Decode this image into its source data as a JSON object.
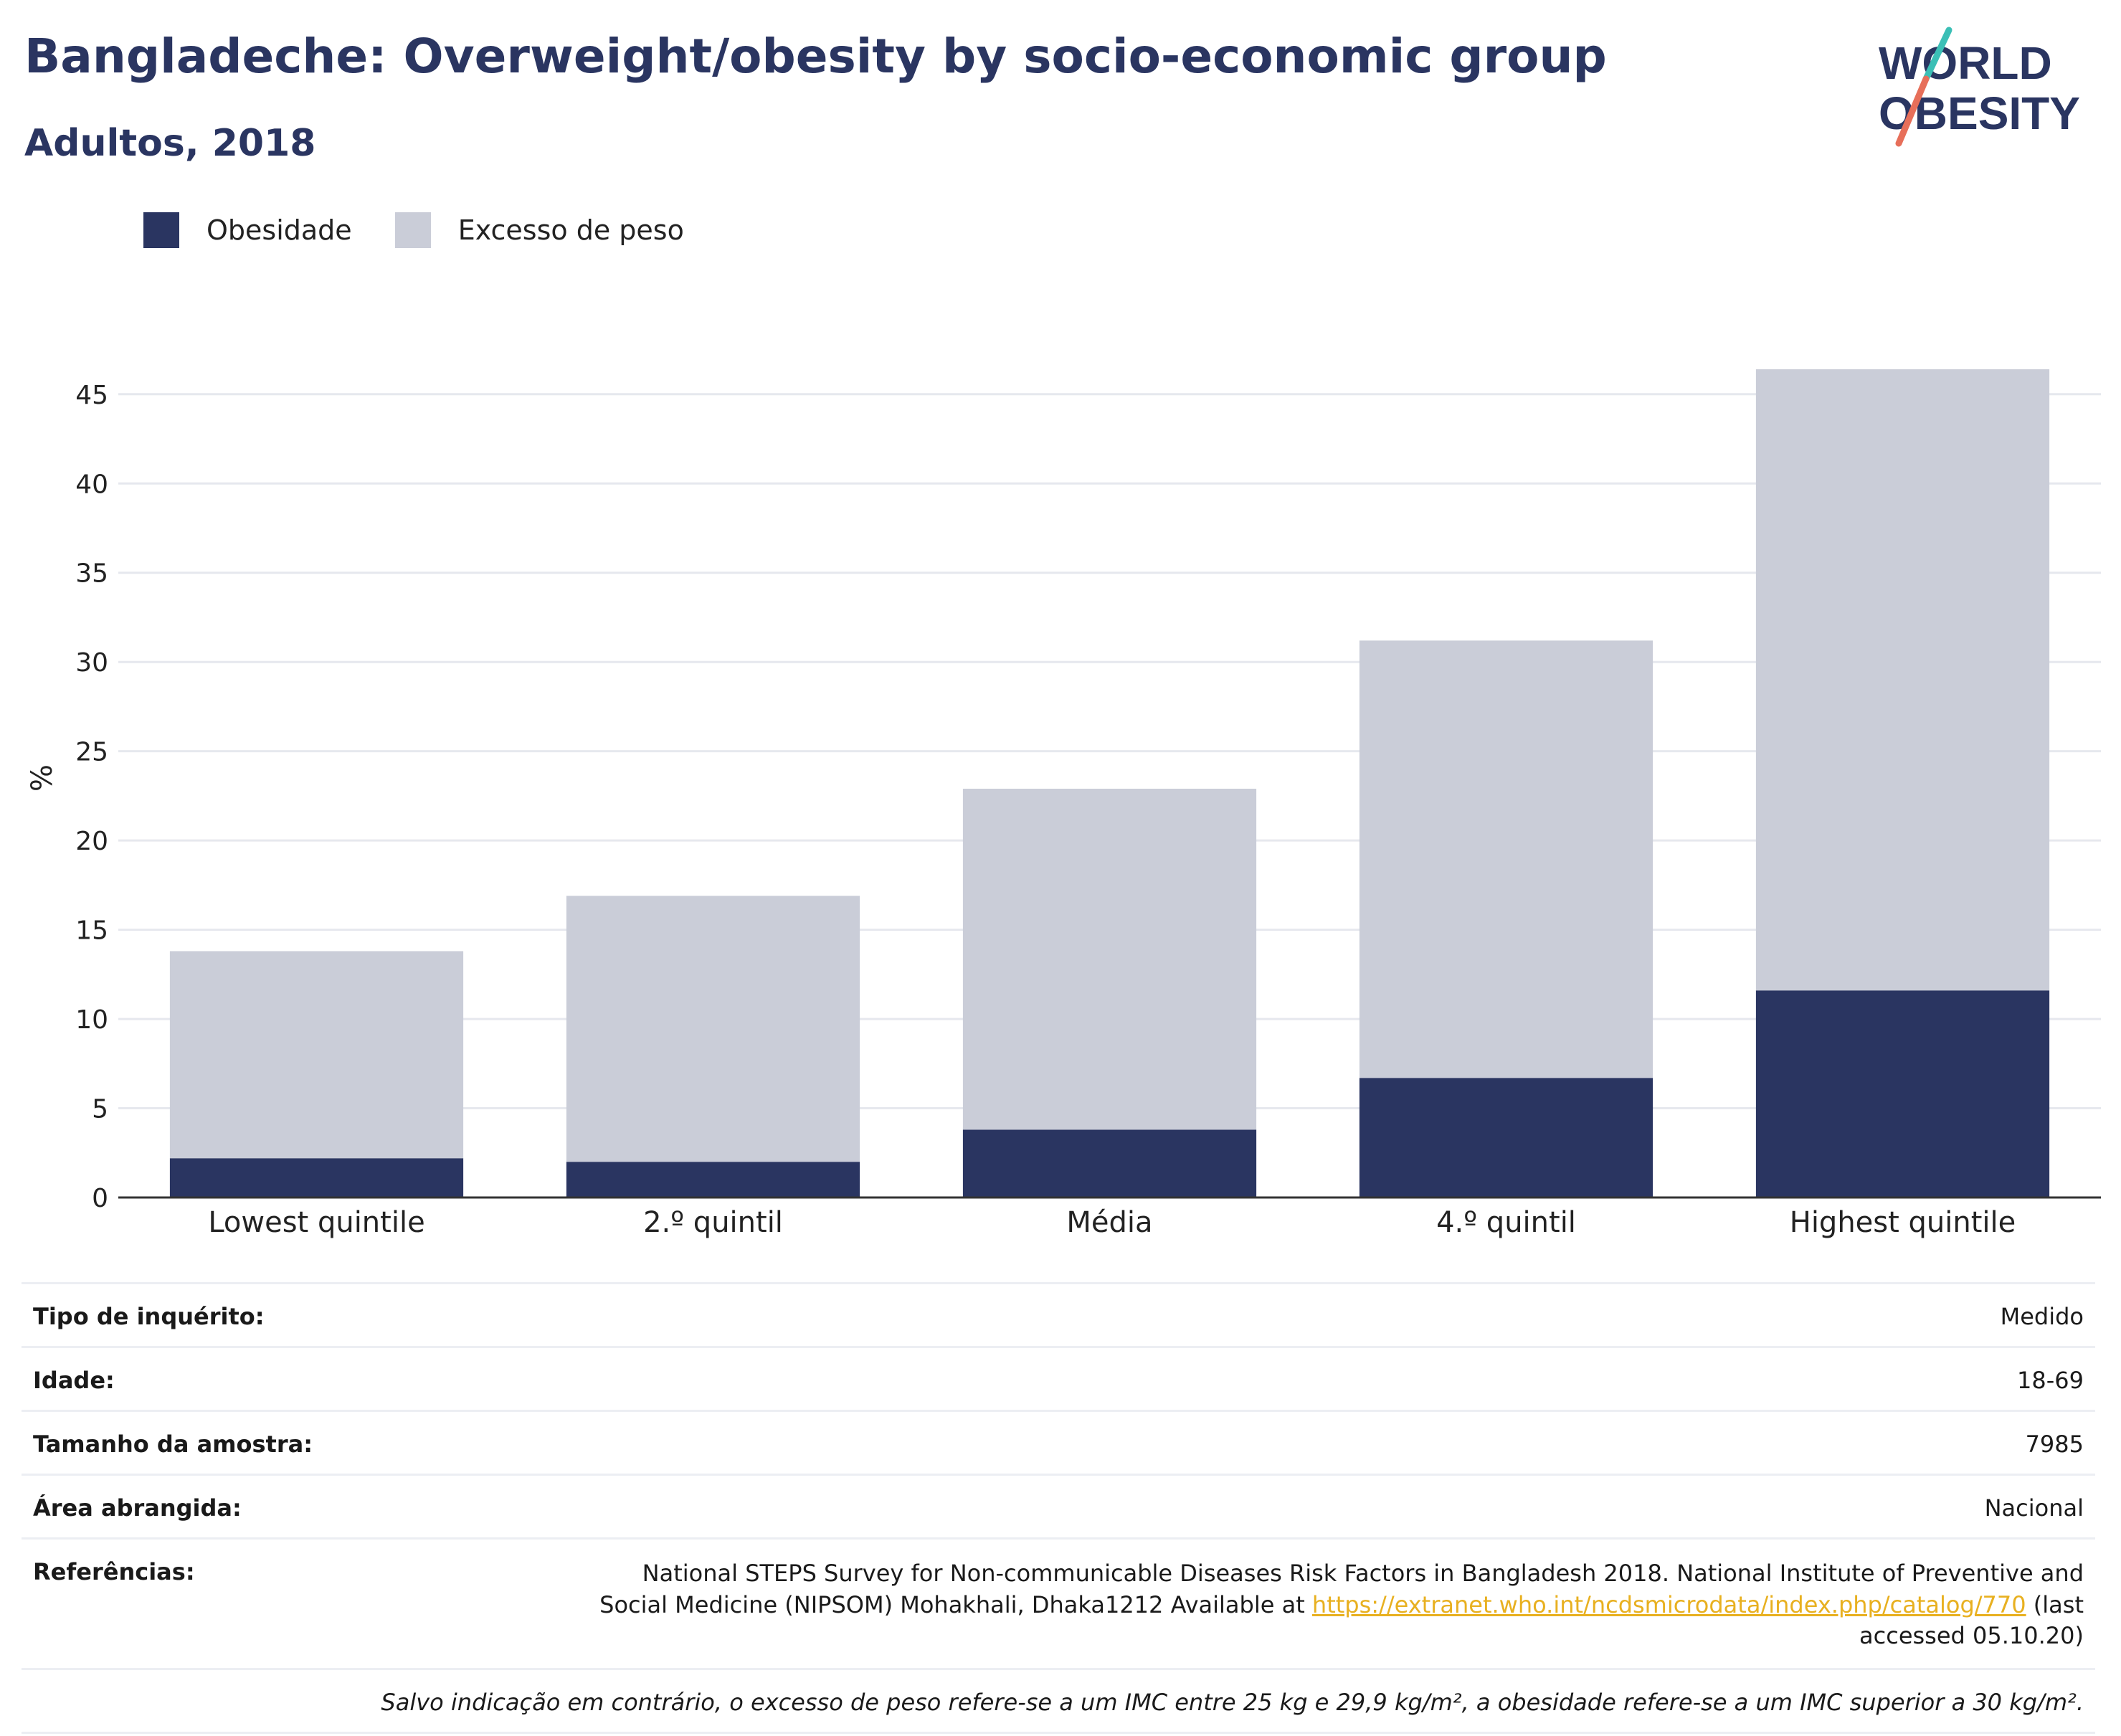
{
  "header": {
    "title": "Bangladeche: Overweight/obesity by socio-economic group",
    "subtitle": "Adultos, 2018"
  },
  "logo": {
    "line1": "WORLD",
    "line2": "OBESITY"
  },
  "legend": [
    {
      "label": "Obesidade",
      "color": "#2a3561"
    },
    {
      "label": "Excesso de peso",
      "color": "#cacdd8"
    }
  ],
  "chart_data": {
    "type": "bar",
    "stacked": true,
    "categories": [
      "Lowest quintile",
      "2.º quintil",
      "Média",
      "4.º quintil",
      "Highest quintile"
    ],
    "series": [
      {
        "name": "Obesidade",
        "color": "#2a3561",
        "values": [
          2.2,
          2.0,
          3.8,
          6.7,
          11.6
        ]
      },
      {
        "name": "Excesso de peso",
        "color": "#cacdd8",
        "values": [
          11.6,
          14.9,
          19.1,
          24.5,
          34.8
        ]
      }
    ],
    "ylabel": "%",
    "ylim": [
      0,
      47
    ],
    "yticks": [
      0,
      5,
      10,
      15,
      20,
      25,
      30,
      35,
      40,
      45
    ],
    "grid": true,
    "legend_position": "top-left"
  },
  "meta": {
    "survey_type": {
      "label": "Tipo de inquérito:",
      "value": "Medido"
    },
    "age": {
      "label": "Idade:",
      "value": "18-69"
    },
    "sample_size": {
      "label": "Tamanho da amostra:",
      "value": "7985"
    },
    "area": {
      "label": "Área abrangida:",
      "value": "Nacional"
    },
    "references": {
      "label": "Referências:",
      "text_before": "National STEPS Survey for Non-communicable Diseases Risk Factors in Bangladesh 2018. National Institute of Preventive and Social Medicine (NIPSOM) Mohakhali, Dhaka1212 Available at ",
      "link": "https://extranet.who.int/ncdsmicrodata/index.php/catalog/770",
      "text_after": " (last accessed 05.10.20)"
    },
    "note": "Salvo indicação em contrário, o excesso de peso refere-se a um IMC entre 25 kg e 29,9 kg/m², a obesidade refere-se a um IMC superior a 30 kg/m²."
  }
}
